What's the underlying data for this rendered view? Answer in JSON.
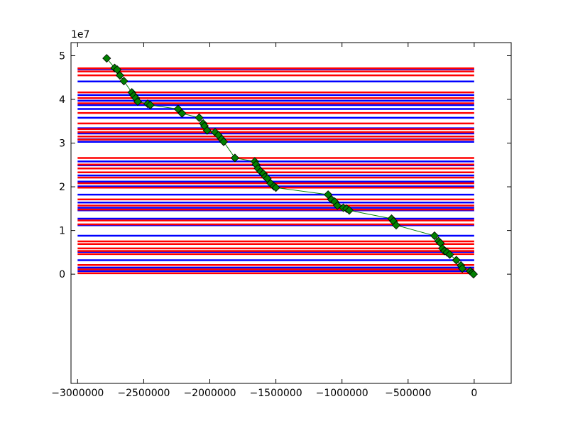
{
  "chart_data": {
    "type": "line",
    "title": "",
    "xlabel": "",
    "ylabel": "",
    "y_multiplier_label": "1e7",
    "xlim": [
      -3050000,
      280000
    ],
    "ylim": [
      -25000000,
      53000000
    ],
    "x_ticks": [
      -3000000,
      -2500000,
      -2000000,
      -1500000,
      -1000000,
      -500000,
      0
    ],
    "x_tick_labels": [
      "−3000000",
      "−2500000",
      "−2000000",
      "−1500000",
      "−1000000",
      "−500000",
      "0"
    ],
    "y_ticks": [
      0,
      10000000,
      20000000,
      30000000,
      40000000,
      50000000
    ],
    "y_tick_labels": [
      "0",
      "1",
      "2",
      "3",
      "4",
      "5"
    ],
    "grid": false,
    "hlines": {
      "x_range": [
        -3000000,
        0
      ],
      "red": [
        200000,
        1100000,
        2100000,
        4600000,
        5300000,
        5900000,
        6900000,
        7500000,
        11400000,
        12300000,
        14800000,
        15700000,
        17100000,
        19800000,
        20800000,
        22100000,
        23300000,
        24200000,
        25100000,
        26600000,
        30800000,
        31500000,
        32500000,
        33200000,
        34500000,
        36900000,
        39100000,
        40300000,
        41600000,
        45500000,
        46400000,
        47100000
      ],
      "blue": [
        700000,
        1500000,
        3200000,
        5100000,
        8800000,
        11200000,
        12700000,
        14600000,
        15200000,
        16400000,
        18200000,
        20100000,
        21200000,
        22600000,
        24900000,
        25800000,
        30300000,
        30900000,
        32200000,
        33400000,
        35800000,
        37800000,
        38700000,
        39700000,
        41000000,
        44100000,
        46900000
      ]
    },
    "series": [
      {
        "color": "#008000",
        "marker": "diamond",
        "x": [
          -2780000,
          -2720000,
          -2700000,
          -2680000,
          -2650000,
          -2590000,
          -2575000,
          -2560000,
          -2545000,
          -2470000,
          -2450000,
          -2240000,
          -2210000,
          -2080000,
          -2050000,
          -2040000,
          -2020000,
          -1960000,
          -1935000,
          -1910000,
          -1895000,
          -1810000,
          -1660000,
          -1650000,
          -1635000,
          -1615000,
          -1595000,
          -1580000,
          -1565000,
          -1540000,
          -1515000,
          -1500000,
          -1105000,
          -1080000,
          -1055000,
          -1035000,
          -990000,
          -965000,
          -945000,
          -625000,
          -610000,
          -590000,
          -300000,
          -270000,
          -255000,
          -240000,
          -225000,
          -205000,
          -185000,
          -135000,
          -100000,
          -90000,
          -30000,
          -15000,
          -5000
        ],
        "y": [
          49400000,
          47200000,
          46800000,
          45500000,
          44200000,
          41600000,
          40900000,
          40300000,
          39500000,
          39000000,
          38700000,
          37800000,
          36800000,
          35800000,
          34500000,
          33900000,
          32900000,
          32500000,
          31800000,
          30900000,
          30300000,
          26600000,
          25800000,
          25100000,
          24200000,
          23500000,
          23000000,
          22300000,
          21900000,
          20800000,
          20100000,
          19800000,
          18200000,
          17100000,
          16600000,
          15700000,
          15200000,
          15000000,
          14600000,
          12700000,
          12100000,
          11200000,
          8800000,
          7600000,
          7100000,
          5900000,
          5300000,
          5000000,
          4500000,
          3200000,
          2000000,
          1300000,
          700000,
          300000,
          0
        ]
      }
    ]
  }
}
